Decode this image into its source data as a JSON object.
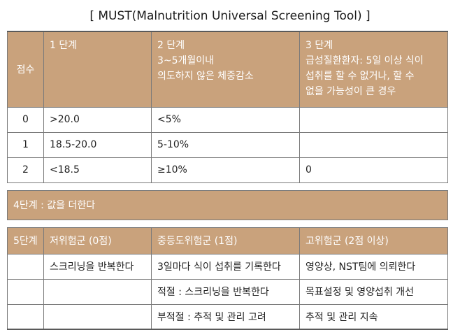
{
  "title": "[ MUST(Malnutrition Universal Screening Tool) ]",
  "header": {
    "score_label": "점수",
    "stage1": [
      "1 단계"
    ],
    "stage2": [
      "2 단계",
      "3~5개월이내",
      "의도하지 않은 체중감소"
    ],
    "stage3": [
      "3 단계",
      "급성질환환자: 5일 이상 식이",
      "섭취를 할 수 없거나, 할 수",
      "없을 가능성이 큰 경우"
    ]
  },
  "score_rows": [
    {
      "score": "0",
      "stage1": ">20.0",
      "stage2": "<5%",
      "stage3": ""
    },
    {
      "score": "1",
      "stage1": "18.5-20.0",
      "stage2": "5-10%",
      "stage3": ""
    },
    {
      "score": "2",
      "stage1": "<18.5",
      "stage2": "≥10%",
      "stage3": "0"
    }
  ],
  "stage4": "4단계 : 값을 더한다",
  "stage5": {
    "label": "5단계",
    "low_risk": "저위험군 (0점)",
    "medium_risk": "중등도위험군 (1점)",
    "high_risk": "고위험군 (2점 이상)"
  },
  "action_rows": [
    {
      "low": "스크리닝을 반복한다",
      "medium": "3일마다 식이 섭취를 기록한다",
      "high": "영양상, NST팀에 의뢰한다"
    },
    {
      "low": "",
      "medium": "적절 : 스크리닝을 반복한다",
      "high": "목표설정 및 영양섭취 개선"
    },
    {
      "low": "",
      "medium": "부적절 : 추적 및 관리 고려",
      "high": "추적 및 관리 지속"
    }
  ]
}
